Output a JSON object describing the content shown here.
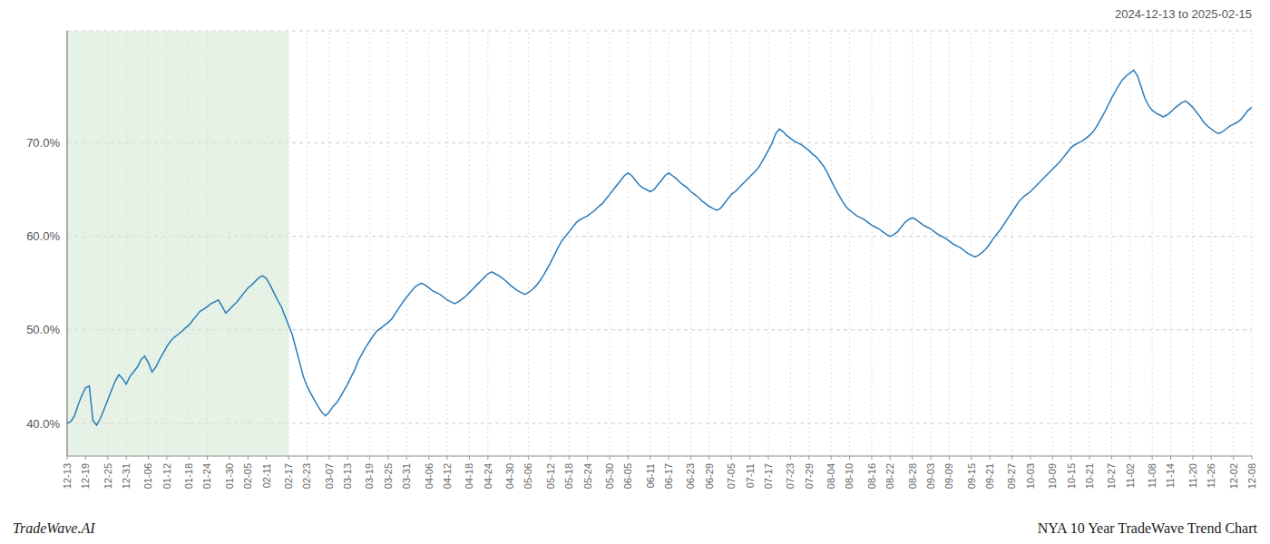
{
  "chart_data": {
    "type": "line",
    "title": "NYA 10 Year TradeWave Trend Chart",
    "subtitle": "2024-12-13 to 2025-02-15",
    "annotations": [
      "TradeWave.AI"
    ],
    "color": "#2b7bba",
    "grid": true,
    "highlight": {
      "from": "12-13",
      "to": "02-17",
      "color": "#d6ead6"
    },
    "ylim": [
      0.365,
      0.82
    ],
    "yticks": [
      {
        "value": 0.4,
        "label": "40.0%"
      },
      {
        "value": 0.5,
        "label": "50.0%"
      },
      {
        "value": 0.6,
        "label": "60.0%"
      },
      {
        "value": 0.7,
        "label": "70.0%"
      }
    ],
    "categories": [
      "12-13",
      null,
      null,
      null,
      null,
      "12-19",
      null,
      null,
      null,
      null,
      null,
      "12-25",
      null,
      null,
      null,
      null,
      "12-31",
      null,
      null,
      null,
      null,
      null,
      "01-06",
      null,
      null,
      null,
      null,
      "01-12",
      null,
      null,
      null,
      null,
      null,
      "01-18",
      null,
      null,
      null,
      null,
      "01-24",
      null,
      null,
      null,
      null,
      null,
      "01-30",
      null,
      null,
      null,
      null,
      "02-05",
      null,
      null,
      null,
      null,
      "02-11",
      null,
      null,
      null,
      null,
      null,
      "02-17",
      null,
      null,
      null,
      null,
      "02-23",
      null,
      null,
      null,
      null,
      null,
      "03-07",
      null,
      null,
      null,
      null,
      "03-13",
      null,
      null,
      null,
      null,
      null,
      "03-19",
      null,
      null,
      null,
      null,
      "03-25",
      null,
      null,
      null,
      null,
      "03-31",
      null,
      null,
      null,
      null,
      null,
      "04-06",
      null,
      null,
      null,
      null,
      "04-12",
      null,
      null,
      null,
      null,
      null,
      "04-18",
      null,
      null,
      null,
      null,
      "04-24",
      null,
      null,
      null,
      null,
      null,
      "04-30",
      null,
      null,
      null,
      null,
      "05-06",
      null,
      null,
      null,
      null,
      null,
      "05-12",
      null,
      null,
      null,
      null,
      "05-18",
      null,
      null,
      null,
      null,
      "05-24",
      null,
      null,
      null,
      null,
      null,
      "05-30",
      null,
      null,
      null,
      null,
      "06-05",
      null,
      null,
      null,
      null,
      null,
      "06-11",
      null,
      null,
      null,
      null,
      "06-17",
      null,
      null,
      null,
      null,
      null,
      "06-23",
      null,
      null,
      null,
      null,
      "06-29",
      null,
      null,
      null,
      null,
      null,
      "07-05",
      null,
      null,
      null,
      null,
      "07-11",
      null,
      null,
      null,
      null,
      "07-17",
      null,
      null,
      null,
      null,
      null,
      "07-23",
      null,
      null,
      null,
      null,
      "07-29",
      null,
      null,
      null,
      null,
      null,
      "08-04",
      null,
      null,
      null,
      null,
      "08-10",
      null,
      null,
      null,
      null,
      null,
      "08-16",
      null,
      null,
      null,
      null,
      "08-22",
      null,
      null,
      null,
      null,
      null,
      "08-28",
      null,
      null,
      null,
      null,
      "09-03",
      null,
      null,
      null,
      null,
      "09-09",
      null,
      null,
      null,
      null,
      null,
      "09-15",
      null,
      null,
      null,
      null,
      "09-21",
      null,
      null,
      null,
      null,
      null,
      "09-27",
      null,
      null,
      null,
      null,
      "10-03",
      null,
      null,
      null,
      null,
      null,
      "10-09",
      null,
      null,
      null,
      null,
      "10-15",
      null,
      null,
      null,
      null,
      "10-21",
      null,
      null,
      null,
      null,
      null,
      "10-27",
      null,
      null,
      null,
      null,
      "11-02",
      null,
      null,
      null,
      null,
      null,
      "11-08",
      null,
      null,
      null,
      null,
      "11-14",
      null,
      null,
      null,
      null,
      null,
      "11-20",
      null,
      null,
      null,
      null,
      "11-26",
      null,
      null,
      null,
      null,
      null,
      "12-02",
      null,
      null,
      null,
      null,
      "12-08"
    ],
    "values": [
      0.4,
      0.402,
      0.408,
      0.42,
      0.43,
      0.438,
      0.44,
      0.403,
      0.398,
      0.405,
      0.415,
      0.425,
      0.435,
      0.445,
      0.452,
      0.448,
      0.442,
      0.45,
      0.455,
      0.46,
      0.468,
      0.472,
      0.465,
      0.455,
      0.46,
      0.468,
      0.475,
      0.482,
      0.488,
      0.492,
      0.495,
      0.498,
      0.502,
      0.505,
      0.51,
      0.515,
      0.52,
      0.522,
      0.525,
      0.528,
      0.53,
      0.532,
      0.525,
      0.518,
      0.522,
      0.526,
      0.53,
      0.535,
      0.54,
      0.545,
      0.548,
      0.552,
      0.556,
      0.558,
      0.555,
      0.548,
      0.54,
      0.532,
      0.525,
      0.515,
      0.505,
      0.495,
      0.48,
      0.465,
      0.45,
      0.44,
      0.432,
      0.425,
      0.418,
      0.412,
      0.408,
      0.412,
      0.418,
      0.422,
      0.428,
      0.435,
      0.442,
      0.45,
      0.458,
      0.468,
      0.475,
      0.482,
      0.488,
      0.494,
      0.499,
      0.502,
      0.505,
      0.508,
      0.512,
      0.518,
      0.524,
      0.53,
      0.535,
      0.54,
      0.545,
      0.548,
      0.55,
      0.548,
      0.545,
      0.542,
      0.54,
      0.538,
      0.535,
      0.532,
      0.53,
      0.528,
      0.53,
      0.533,
      0.536,
      0.54,
      0.544,
      0.548,
      0.552,
      0.556,
      0.56,
      0.562,
      0.56,
      0.558,
      0.555,
      0.552,
      0.548,
      0.545,
      0.542,
      0.54,
      0.538,
      0.54,
      0.543,
      0.547,
      0.552,
      0.558,
      0.565,
      0.572,
      0.58,
      0.588,
      0.595,
      0.6,
      0.605,
      0.61,
      0.615,
      0.618,
      0.62,
      0.622,
      0.625,
      0.628,
      0.632,
      0.635,
      0.64,
      0.645,
      0.65,
      0.655,
      0.66,
      0.665,
      0.668,
      0.665,
      0.66,
      0.655,
      0.652,
      0.65,
      0.648,
      0.65,
      0.655,
      0.66,
      0.665,
      0.668,
      0.665,
      0.662,
      0.658,
      0.655,
      0.652,
      0.648,
      0.645,
      0.642,
      0.638,
      0.635,
      0.632,
      0.63,
      0.628,
      0.63,
      0.635,
      0.64,
      0.645,
      0.648,
      0.652,
      0.656,
      0.66,
      0.664,
      0.668,
      0.672,
      0.678,
      0.685,
      0.692,
      0.7,
      0.71,
      0.715,
      0.712,
      0.708,
      0.705,
      0.702,
      0.7,
      0.698,
      0.695,
      0.692,
      0.688,
      0.685,
      0.68,
      0.675,
      0.668,
      0.66,
      0.652,
      0.645,
      0.638,
      0.632,
      0.628,
      0.625,
      0.622,
      0.62,
      0.618,
      0.615,
      0.612,
      0.61,
      0.608,
      0.605,
      0.602,
      0.6,
      0.602,
      0.605,
      0.61,
      0.615,
      0.618,
      0.62,
      0.618,
      0.615,
      0.612,
      0.61,
      0.608,
      0.605,
      0.602,
      0.6,
      0.598,
      0.595,
      0.592,
      0.59,
      0.588,
      0.585,
      0.582,
      0.58,
      0.578,
      0.58,
      0.583,
      0.587,
      0.592,
      0.598,
      0.603,
      0.608,
      0.614,
      0.62,
      0.626,
      0.632,
      0.638,
      0.642,
      0.645,
      0.648,
      0.652,
      0.656,
      0.66,
      0.664,
      0.668,
      0.672,
      0.676,
      0.68,
      0.685,
      0.69,
      0.695,
      0.698,
      0.7,
      0.702,
      0.705,
      0.708,
      0.712,
      0.718,
      0.725,
      0.732,
      0.74,
      0.748,
      0.755,
      0.762,
      0.768,
      0.772,
      0.775,
      0.778,
      0.772,
      0.76,
      0.748,
      0.74,
      0.735,
      0.732,
      0.73,
      0.728,
      0.73,
      0.733,
      0.737,
      0.74,
      0.743,
      0.745,
      0.742,
      0.738,
      0.733,
      0.728,
      0.722,
      0.718,
      0.715,
      0.712,
      0.71,
      0.712,
      0.715,
      0.718,
      0.72,
      0.722,
      0.725,
      0.73,
      0.735,
      0.738
    ]
  }
}
